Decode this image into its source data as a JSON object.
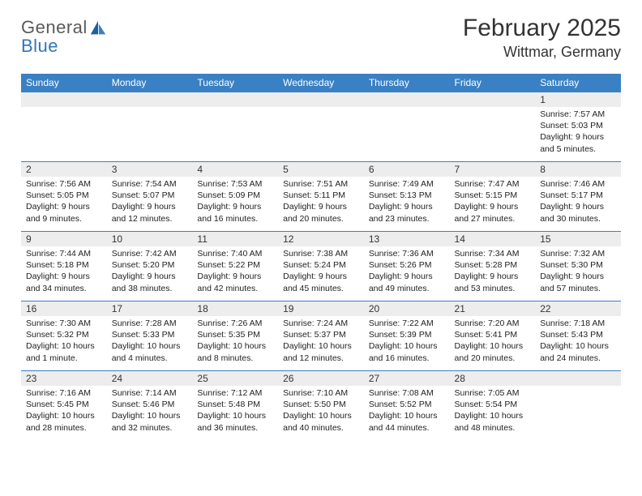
{
  "logo": {
    "line1": "General",
    "line2": "Blue"
  },
  "title": "February 2025",
  "location": "Wittmar, Germany",
  "colors": {
    "header_bg": "#3a80c4",
    "header_text": "#ffffff",
    "daynum_bg": "#ededed",
    "rule": "#3a80c4",
    "text": "#333333",
    "logo_gray": "#5a5a5a",
    "logo_blue": "#2f76b8"
  },
  "typography": {
    "title_fontsize": 30,
    "location_fontsize": 18,
    "weekday_fontsize": 12,
    "daynum_fontsize": 12,
    "body_fontsize": 10.5
  },
  "weekdays": [
    "Sunday",
    "Monday",
    "Tuesday",
    "Wednesday",
    "Thursday",
    "Friday",
    "Saturday"
  ],
  "weeks": [
    [
      null,
      null,
      null,
      null,
      null,
      null,
      {
        "n": "1",
        "sunrise": "Sunrise: 7:57 AM",
        "sunset": "Sunset: 5:03 PM",
        "daylight": "Daylight: 9 hours and 5 minutes."
      }
    ],
    [
      {
        "n": "2",
        "sunrise": "Sunrise: 7:56 AM",
        "sunset": "Sunset: 5:05 PM",
        "daylight": "Daylight: 9 hours and 9 minutes."
      },
      {
        "n": "3",
        "sunrise": "Sunrise: 7:54 AM",
        "sunset": "Sunset: 5:07 PM",
        "daylight": "Daylight: 9 hours and 12 minutes."
      },
      {
        "n": "4",
        "sunrise": "Sunrise: 7:53 AM",
        "sunset": "Sunset: 5:09 PM",
        "daylight": "Daylight: 9 hours and 16 minutes."
      },
      {
        "n": "5",
        "sunrise": "Sunrise: 7:51 AM",
        "sunset": "Sunset: 5:11 PM",
        "daylight": "Daylight: 9 hours and 20 minutes."
      },
      {
        "n": "6",
        "sunrise": "Sunrise: 7:49 AM",
        "sunset": "Sunset: 5:13 PM",
        "daylight": "Daylight: 9 hours and 23 minutes."
      },
      {
        "n": "7",
        "sunrise": "Sunrise: 7:47 AM",
        "sunset": "Sunset: 5:15 PM",
        "daylight": "Daylight: 9 hours and 27 minutes."
      },
      {
        "n": "8",
        "sunrise": "Sunrise: 7:46 AM",
        "sunset": "Sunset: 5:17 PM",
        "daylight": "Daylight: 9 hours and 30 minutes."
      }
    ],
    [
      {
        "n": "9",
        "sunrise": "Sunrise: 7:44 AM",
        "sunset": "Sunset: 5:18 PM",
        "daylight": "Daylight: 9 hours and 34 minutes."
      },
      {
        "n": "10",
        "sunrise": "Sunrise: 7:42 AM",
        "sunset": "Sunset: 5:20 PM",
        "daylight": "Daylight: 9 hours and 38 minutes."
      },
      {
        "n": "11",
        "sunrise": "Sunrise: 7:40 AM",
        "sunset": "Sunset: 5:22 PM",
        "daylight": "Daylight: 9 hours and 42 minutes."
      },
      {
        "n": "12",
        "sunrise": "Sunrise: 7:38 AM",
        "sunset": "Sunset: 5:24 PM",
        "daylight": "Daylight: 9 hours and 45 minutes."
      },
      {
        "n": "13",
        "sunrise": "Sunrise: 7:36 AM",
        "sunset": "Sunset: 5:26 PM",
        "daylight": "Daylight: 9 hours and 49 minutes."
      },
      {
        "n": "14",
        "sunrise": "Sunrise: 7:34 AM",
        "sunset": "Sunset: 5:28 PM",
        "daylight": "Daylight: 9 hours and 53 minutes."
      },
      {
        "n": "15",
        "sunrise": "Sunrise: 7:32 AM",
        "sunset": "Sunset: 5:30 PM",
        "daylight": "Daylight: 9 hours and 57 minutes."
      }
    ],
    [
      {
        "n": "16",
        "sunrise": "Sunrise: 7:30 AM",
        "sunset": "Sunset: 5:32 PM",
        "daylight": "Daylight: 10 hours and 1 minute."
      },
      {
        "n": "17",
        "sunrise": "Sunrise: 7:28 AM",
        "sunset": "Sunset: 5:33 PM",
        "daylight": "Daylight: 10 hours and 4 minutes."
      },
      {
        "n": "18",
        "sunrise": "Sunrise: 7:26 AM",
        "sunset": "Sunset: 5:35 PM",
        "daylight": "Daylight: 10 hours and 8 minutes."
      },
      {
        "n": "19",
        "sunrise": "Sunrise: 7:24 AM",
        "sunset": "Sunset: 5:37 PM",
        "daylight": "Daylight: 10 hours and 12 minutes."
      },
      {
        "n": "20",
        "sunrise": "Sunrise: 7:22 AM",
        "sunset": "Sunset: 5:39 PM",
        "daylight": "Daylight: 10 hours and 16 minutes."
      },
      {
        "n": "21",
        "sunrise": "Sunrise: 7:20 AM",
        "sunset": "Sunset: 5:41 PM",
        "daylight": "Daylight: 10 hours and 20 minutes."
      },
      {
        "n": "22",
        "sunrise": "Sunrise: 7:18 AM",
        "sunset": "Sunset: 5:43 PM",
        "daylight": "Daylight: 10 hours and 24 minutes."
      }
    ],
    [
      {
        "n": "23",
        "sunrise": "Sunrise: 7:16 AM",
        "sunset": "Sunset: 5:45 PM",
        "daylight": "Daylight: 10 hours and 28 minutes."
      },
      {
        "n": "24",
        "sunrise": "Sunrise: 7:14 AM",
        "sunset": "Sunset: 5:46 PM",
        "daylight": "Daylight: 10 hours and 32 minutes."
      },
      {
        "n": "25",
        "sunrise": "Sunrise: 7:12 AM",
        "sunset": "Sunset: 5:48 PM",
        "daylight": "Daylight: 10 hours and 36 minutes."
      },
      {
        "n": "26",
        "sunrise": "Sunrise: 7:10 AM",
        "sunset": "Sunset: 5:50 PM",
        "daylight": "Daylight: 10 hours and 40 minutes."
      },
      {
        "n": "27",
        "sunrise": "Sunrise: 7:08 AM",
        "sunset": "Sunset: 5:52 PM",
        "daylight": "Daylight: 10 hours and 44 minutes."
      },
      {
        "n": "28",
        "sunrise": "Sunrise: 7:05 AM",
        "sunset": "Sunset: 5:54 PM",
        "daylight": "Daylight: 10 hours and 48 minutes."
      },
      null
    ]
  ]
}
